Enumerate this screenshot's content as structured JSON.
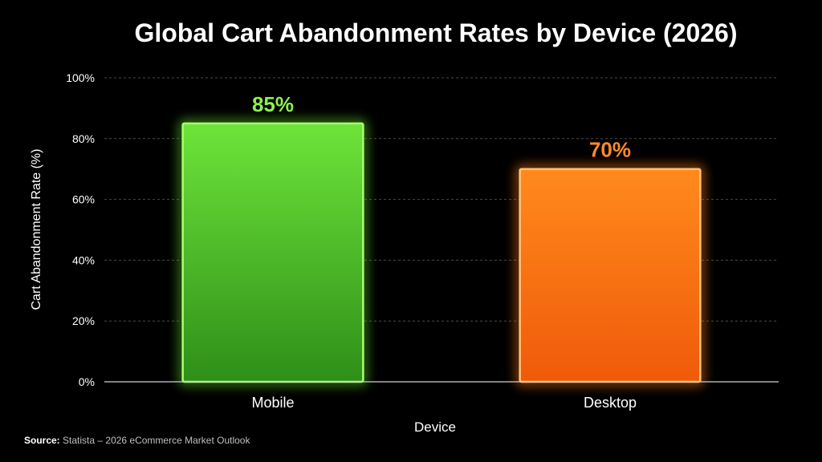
{
  "chart_data": {
    "type": "bar",
    "title": "Global Cart Abandonment Rates by Device (2026)",
    "xlabel": "Device",
    "ylabel": "Cart Abandonment Rate (%)",
    "categories": [
      "Mobile",
      "Desktop"
    ],
    "values": [
      85,
      70
    ],
    "data_labels": [
      "85%",
      "70%"
    ],
    "ylim": [
      0,
      100
    ],
    "yticks": [
      0,
      20,
      40,
      60,
      80,
      100
    ],
    "ytick_labels": [
      "0%",
      "20%",
      "40%",
      "60%",
      "80%",
      "100%"
    ],
    "grid": true,
    "legend": "none",
    "colors": {
      "Mobile": "#5fd62a",
      "Desktop": "#ff7a12"
    }
  },
  "source": {
    "label": "Source:",
    "text": "Statista – 2026 eCommerce Market Outlook"
  }
}
